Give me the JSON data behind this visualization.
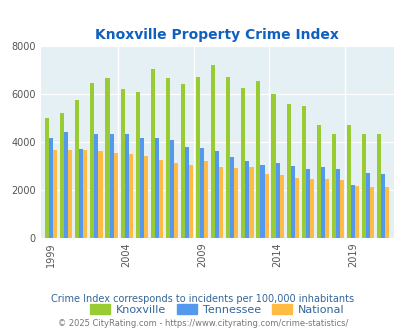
{
  "title": "Knoxville Property Crime Index",
  "title_color": "#1060c0",
  "subtitle": "Crime Index corresponds to incidents per 100,000 inhabitants",
  "subtitle_color": "#336699",
  "footer": "© 2025 CityRating.com - https://www.cityrating.com/crime-statistics/",
  "footer_color": "#777777",
  "years": [
    1999,
    2000,
    2001,
    2002,
    2003,
    2004,
    2005,
    2006,
    2007,
    2008,
    2009,
    2010,
    2011,
    2012,
    2013,
    2014,
    2015,
    2016,
    2017,
    2018,
    2019,
    2020,
    2021
  ],
  "knoxville": [
    5000,
    5200,
    5750,
    6450,
    6650,
    6200,
    6100,
    7050,
    6650,
    6400,
    6700,
    7200,
    6700,
    6250,
    6550,
    6000,
    5600,
    5500,
    4700,
    4350,
    4700,
    4350,
    4350
  ],
  "tennessee": [
    4150,
    4400,
    3700,
    4350,
    4350,
    4350,
    4150,
    4150,
    4100,
    3800,
    3750,
    3600,
    3350,
    3200,
    3050,
    3100,
    3000,
    2850,
    2950,
    2850,
    2200,
    2700,
    2650
  ],
  "national": [
    3650,
    3650,
    3650,
    3600,
    3550,
    3500,
    3400,
    3250,
    3100,
    3050,
    3200,
    2950,
    2900,
    2950,
    2650,
    2600,
    2500,
    2450,
    2450,
    2400,
    2150,
    2100,
    2100
  ],
  "knoxville_color": "#99cc33",
  "tennessee_color": "#5599ee",
  "national_color": "#ffbb44",
  "bg_color": "#e5f0f5",
  "ylim": [
    0,
    8000
  ],
  "yticks": [
    0,
    2000,
    4000,
    6000,
    8000
  ],
  "xtick_years": [
    1999,
    2004,
    2009,
    2014,
    2019
  ]
}
